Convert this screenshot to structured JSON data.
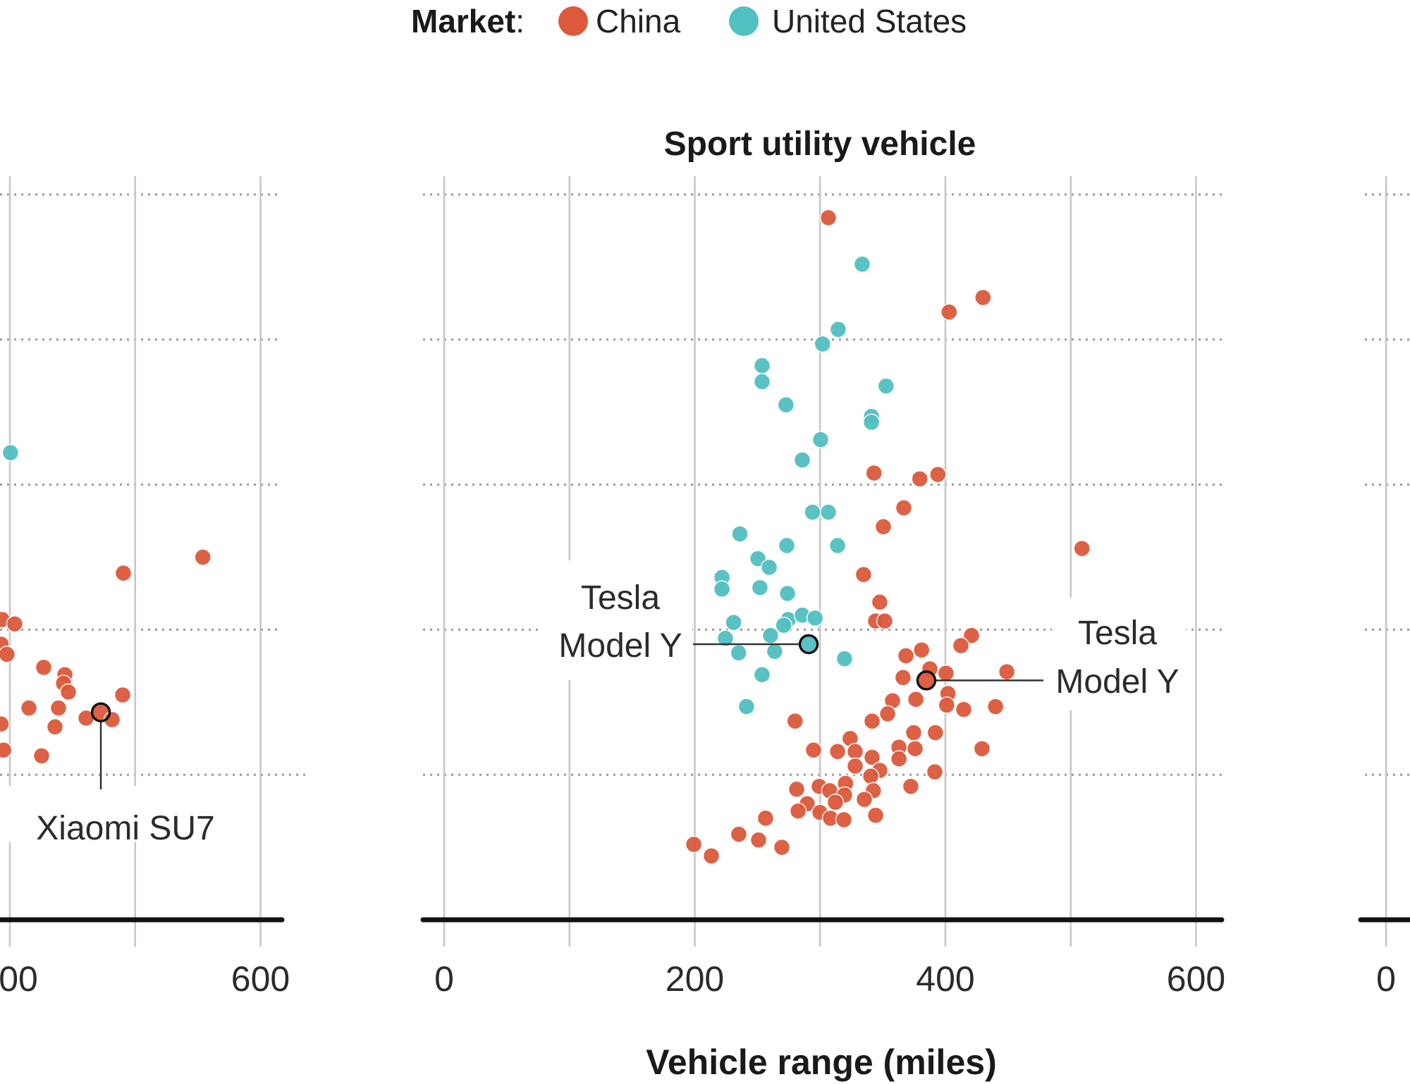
{
  "legend": {
    "label": "Market",
    "separator": ":",
    "items": [
      {
        "name": "China",
        "color": "#dc593c"
      },
      {
        "name": "United States",
        "color": "#52bfc0"
      }
    ]
  },
  "chart_data": [
    {
      "type": "scatter",
      "panel": "left (partially cropped)",
      "title": "",
      "xlabel": "",
      "ylabel": "",
      "x_tick_labels": [
        "00",
        "600"
      ],
      "x_ticks_values": [
        400,
        500,
        600
      ],
      "xlim_visible": [
        392,
        620
      ],
      "y_units_note": "y-axis labels not visible; y given in gridline units (0 = baseline axis, each dotted gridline = 1)",
      "ylim": [
        0,
        5.2
      ],
      "grid": true,
      "series": [
        {
          "name": "China",
          "points": [
            [
              554,
              2.5
            ],
            [
              490.6,
              2.39
            ],
            [
              393.8,
              2.07
            ],
            [
              403.9,
              2.04
            ],
            [
              393,
              1.9
            ],
            [
              397.7,
              1.83
            ],
            [
              427,
              1.74
            ],
            [
              443.9,
              1.69
            ],
            [
              442.8,
              1.63
            ],
            [
              446.7,
              1.57
            ],
            [
              490,
              1.55
            ],
            [
              415.2,
              1.46
            ],
            [
              438.8,
              1.46
            ],
            [
              460.8,
              1.39
            ],
            [
              472.6,
              1.43
            ],
            [
              481.6,
              1.38
            ],
            [
              436,
              1.33
            ],
            [
              393,
              1.35
            ],
            [
              395,
              1.17
            ],
            [
              425.3,
              1.13
            ]
          ]
        },
        {
          "name": "United States",
          "points": [
            [
              400.5,
              3.22
            ]
          ]
        }
      ],
      "annotations": [
        {
          "text": "Xiaomi SU7",
          "series": "China",
          "point": [
            472.6,
            1.43
          ]
        }
      ]
    },
    {
      "type": "scatter",
      "panel": "center",
      "title": "Sport utility vehicle",
      "xlabel": "Vehicle range (miles)",
      "ylabel": "",
      "x_tick_labels": [
        "0",
        "200",
        "400",
        "600"
      ],
      "x_ticks_values": [
        0,
        100,
        200,
        300,
        400,
        500,
        600
      ],
      "xlim": [
        -15,
        620
      ],
      "y_units_note": "y-axis labels not visible; y given in gridline units (0 = baseline axis, each dotted gridline = 1)",
      "ylim": [
        0,
        5.2
      ],
      "grid": true,
      "series": [
        {
          "name": "China",
          "points": [
            [
              306.6,
              4.84
            ],
            [
              430,
              4.29
            ],
            [
              403,
              4.19
            ],
            [
              343,
              3.08
            ],
            [
              379.6,
              3.04
            ],
            [
              394,
              3.07
            ],
            [
              366.8,
              2.84
            ],
            [
              350.5,
              2.71
            ],
            [
              509,
              2.56
            ],
            [
              334.7,
              2.38
            ],
            [
              347.6,
              2.19
            ],
            [
              344.3,
              2.06
            ],
            [
              351.6,
              2.06
            ],
            [
              420.8,
              1.96
            ],
            [
              412.4,
              1.89
            ],
            [
              381,
              1.86
            ],
            [
              368.5,
              1.82
            ],
            [
              387.6,
              1.73
            ],
            [
              400.5,
              1.7
            ],
            [
              449,
              1.71
            ],
            [
              366.2,
              1.67
            ],
            [
              384.8,
              1.65
            ],
            [
              402,
              1.56
            ],
            [
              376.4,
              1.52
            ],
            [
              357.8,
              1.51
            ],
            [
              401,
              1.48
            ],
            [
              414.6,
              1.45
            ],
            [
              440,
              1.47
            ],
            [
              280,
              1.37
            ],
            [
              341.5,
              1.37
            ],
            [
              353.9,
              1.42
            ],
            [
              392,
              1.29
            ],
            [
              374.7,
              1.29
            ],
            [
              429.2,
              1.18
            ],
            [
              294.8,
              1.17
            ],
            [
              314,
              1.16
            ],
            [
              324,
              1.25
            ],
            [
              328,
              1.16
            ],
            [
              341.5,
              1.12
            ],
            [
              362.9,
              1.19
            ],
            [
              375.8,
              1.18
            ],
            [
              362.9,
              1.11
            ],
            [
              328,
              1.06
            ],
            [
              347.7,
              1.03
            ],
            [
              340.4,
              0.99
            ],
            [
              391.5,
              1.02
            ],
            [
              372.4,
              0.92
            ],
            [
              281.3,
              0.9
            ],
            [
              299.3,
              0.92
            ],
            [
              307.7,
              0.89
            ],
            [
              320.3,
              0.94
            ],
            [
              319.5,
              0.86
            ],
            [
              342.5,
              0.89
            ],
            [
              335.3,
              0.83
            ],
            [
              289.7,
              0.8
            ],
            [
              282.4,
              0.75
            ],
            [
              312.2,
              0.81
            ],
            [
              299.9,
              0.74
            ],
            [
              308.3,
              0.7
            ],
            [
              319,
              0.69
            ],
            [
              344.3,
              0.72
            ],
            [
              256.5,
              0.7
            ],
            [
              235.1,
              0.59
            ],
            [
              250.9,
              0.55
            ],
            [
              269.5,
              0.5
            ],
            [
              199.2,
              0.52
            ],
            [
              213.2,
              0.44
            ]
          ]
        },
        {
          "name": "United States",
          "points": [
            [
              333.6,
              4.52
            ],
            [
              314.5,
              4.07
            ],
            [
              302,
              3.97
            ],
            [
              253.7,
              3.82
            ],
            [
              253.7,
              3.71
            ],
            [
              352.7,
              3.68
            ],
            [
              272.8,
              3.55
            ],
            [
              341,
              3.47
            ],
            [
              341,
              3.43
            ],
            [
              300.4,
              3.31
            ],
            [
              285.8,
              3.17
            ],
            [
              294,
              2.81
            ],
            [
              306.6,
              2.81
            ],
            [
              236,
              2.66
            ],
            [
              273.4,
              2.58
            ],
            [
              314,
              2.58
            ],
            [
              250.4,
              2.49
            ],
            [
              259.4,
              2.43
            ],
            [
              221.7,
              2.36
            ],
            [
              221.7,
              2.28
            ],
            [
              252,
              2.29
            ],
            [
              274,
              2.25
            ],
            [
              231,
              2.05
            ],
            [
              274.6,
              2.07
            ],
            [
              285.8,
              2.1
            ],
            [
              296,
              2.08
            ],
            [
              271,
              2.03
            ],
            [
              224.5,
              1.94
            ],
            [
              260.5,
              1.96
            ],
            [
              290.9,
              1.9
            ],
            [
              235,
              1.84
            ],
            [
              263.8,
              1.85
            ],
            [
              319.5,
              1.8
            ],
            [
              253.7,
              1.69
            ],
            [
              241.3,
              1.47
            ]
          ]
        }
      ],
      "annotations": [
        {
          "text_lines": [
            "Tesla",
            "Model Y"
          ],
          "series": "United States",
          "point": [
            290.9,
            1.9
          ],
          "side": "left"
        },
        {
          "text_lines": [
            "Tesla",
            "Model Y"
          ],
          "series": "China",
          "point": [
            384.8,
            1.65
          ],
          "side": "right"
        }
      ]
    },
    {
      "type": "scatter",
      "panel": "right (mostly cropped)",
      "title": "",
      "x_tick_labels": [
        "0"
      ],
      "x_ticks_values": [
        0
      ],
      "grid": true,
      "series": []
    }
  ]
}
